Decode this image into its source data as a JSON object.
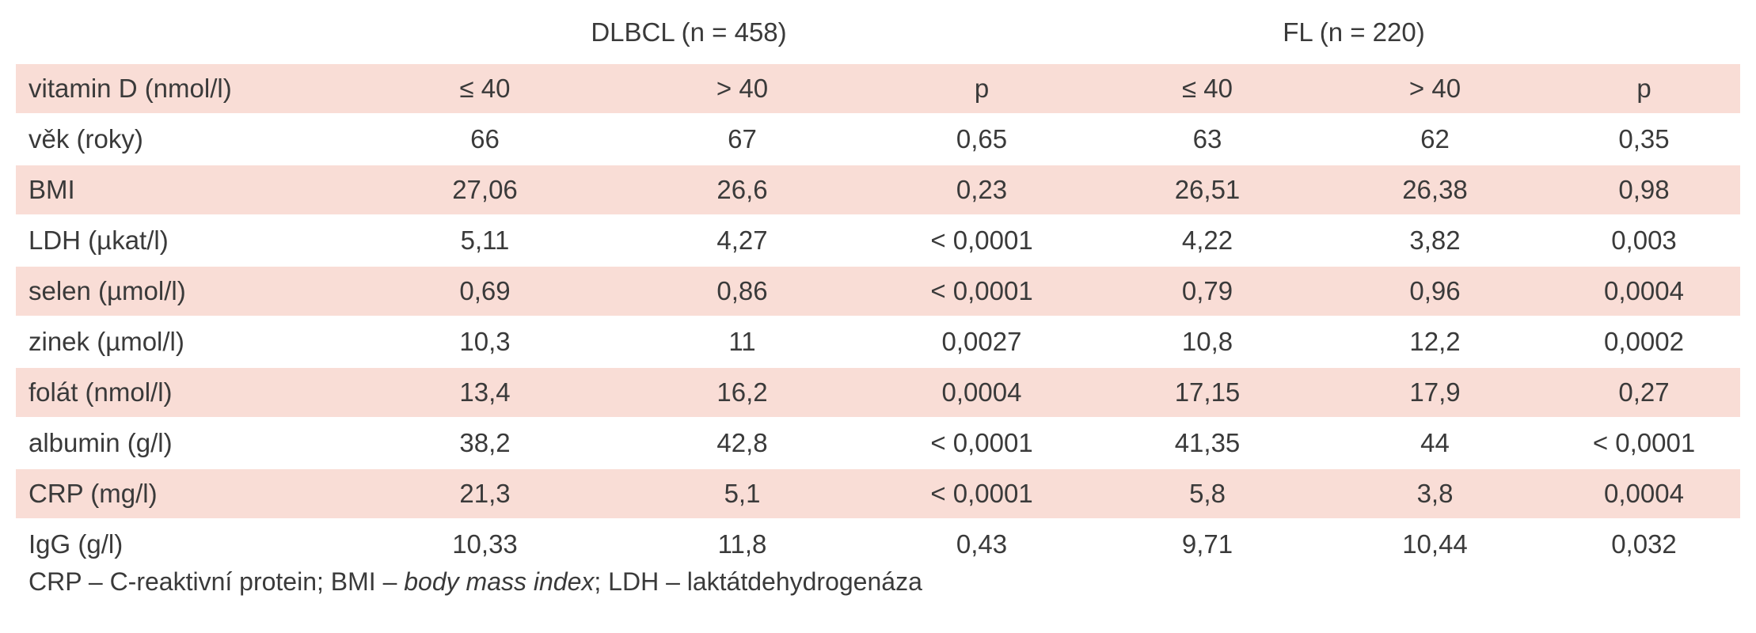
{
  "groups": {
    "dlbcl": "DLBCL (n = 458)",
    "fl": "FL (n = 220)"
  },
  "header_row": [
    "vitamin D (nmol/l)",
    "≤ 40",
    "> 40",
    "p",
    "≤ 40",
    "> 40",
    "p"
  ],
  "rows": [
    [
      "věk (roky)",
      "66",
      "67",
      "0,65",
      "63",
      "62",
      "0,35"
    ],
    [
      "BMI",
      "27,06",
      "26,6",
      "0,23",
      "26,51",
      "26,38",
      "0,98"
    ],
    [
      "LDH (µkat/l)",
      "5,11",
      "4,27",
      "< 0,0001",
      "4,22",
      "3,82",
      "0,003"
    ],
    [
      "selen (µmol/l)",
      "0,69",
      "0,86",
      "< 0,0001",
      "0,79",
      "0,96",
      "0,0004"
    ],
    [
      "zinek (µmol/l)",
      "10,3",
      "11",
      "0,0027",
      "10,8",
      "12,2",
      "0,0002"
    ],
    [
      "folát (nmol/l)",
      "13,4",
      "16,2",
      "0,0004",
      "17,15",
      "17,9",
      "0,27"
    ],
    [
      "albumin (g/l)",
      "38,2",
      "42,8",
      "< 0,0001",
      "41,35",
      "44",
      "< 0,0001"
    ],
    [
      "CRP (mg/l)",
      "21,3",
      "5,1",
      "< 0,0001",
      "5,8",
      "3,8",
      "0,0004"
    ],
    [
      "IgG (g/l)",
      "10,33",
      "11,8",
      "0,43",
      "9,71",
      "10,44",
      "0,032"
    ]
  ],
  "footnote": {
    "part1": "CRP – C-reaktivní protein; BMI – ",
    "part2": "body mass index",
    "part3": "; LDH – laktátdehydrogenáza"
  },
  "colors": {
    "shade": "#f9ddd6",
    "text": "#3a3a3a"
  }
}
